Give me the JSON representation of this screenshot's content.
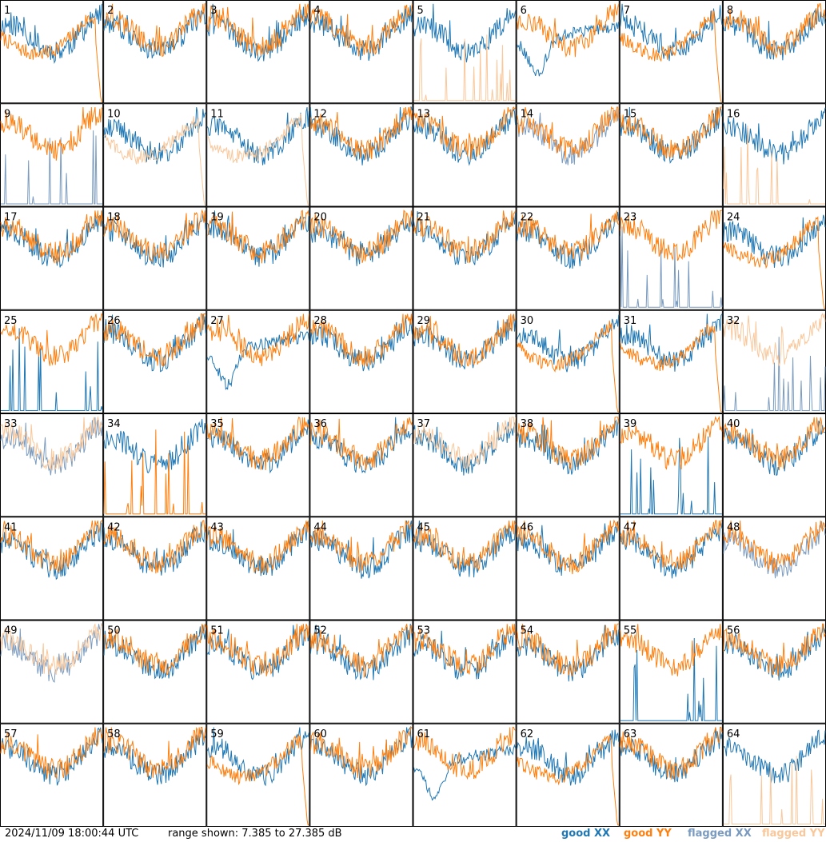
{
  "chart_data": {
    "type": "line",
    "timestamp": "2024/11/09 18:00:44 UTC",
    "range_text": "range shown: 7.385 to 27.385 dB",
    "ylim": [
      7.385,
      27.385
    ],
    "legend": [
      {
        "label": "good XX",
        "color": "#1f77b4"
      },
      {
        "label": "good YY",
        "color": "#ff7f0e"
      },
      {
        "label": "flagged XX",
        "color": "#7a9bbf"
      },
      {
        "label": "flagged YY",
        "color": "#f9c79a"
      }
    ],
    "panels": [
      {
        "label": "1",
        "xx": "good",
        "yy": "good",
        "xx_shape": "bowl",
        "yy_shape": "crash"
      },
      {
        "label": "2",
        "xx": "good",
        "yy": "good",
        "xx_shape": "bowl",
        "yy_shape": "bowl"
      },
      {
        "label": "3",
        "xx": "good",
        "yy": "good",
        "xx_shape": "bowl",
        "yy_shape": "bowl"
      },
      {
        "label": "4",
        "xx": "good",
        "yy": "good",
        "xx_shape": "bowl",
        "yy_shape": "bowl"
      },
      {
        "label": "5",
        "xx": "good",
        "yy": "flagged",
        "xx_shape": "bowl",
        "yy_shape": "spiky"
      },
      {
        "label": "6",
        "xx": "good",
        "yy": "good",
        "xx_shape": "bump",
        "yy_shape": "bowl"
      },
      {
        "label": "7",
        "xx": "good",
        "yy": "good",
        "xx_shape": "bowl",
        "yy_shape": "crash"
      },
      {
        "label": "8",
        "xx": "good",
        "yy": "good",
        "xx_shape": "bowl",
        "yy_shape": "bowl"
      },
      {
        "label": "9",
        "xx": "flagged",
        "yy": "good",
        "xx_shape": "spiky",
        "yy_shape": "bowl"
      },
      {
        "label": "10",
        "xx": "good",
        "yy": "flagged",
        "xx_shape": "bowl",
        "yy_shape": "crash"
      },
      {
        "label": "11",
        "xx": "good",
        "yy": "flagged",
        "xx_shape": "bowl",
        "yy_shape": "crash"
      },
      {
        "label": "12",
        "xx": "good",
        "yy": "good",
        "xx_shape": "bowl",
        "yy_shape": "bowl"
      },
      {
        "label": "13",
        "xx": "good",
        "yy": "good",
        "xx_shape": "bowl",
        "yy_shape": "bowl"
      },
      {
        "label": "14",
        "xx": "flagged",
        "yy": "good",
        "xx_shape": "bowl",
        "yy_shape": "bowl"
      },
      {
        "label": "15",
        "xx": "good",
        "yy": "good",
        "xx_shape": "bowl",
        "yy_shape": "bowl"
      },
      {
        "label": "16",
        "xx": "good",
        "yy": "flagged",
        "xx_shape": "bowl",
        "yy_shape": "spiky"
      },
      {
        "label": "17",
        "xx": "good",
        "yy": "good",
        "xx_shape": "bowl",
        "yy_shape": "bowl"
      },
      {
        "label": "18",
        "xx": "good",
        "yy": "good",
        "xx_shape": "bowl",
        "yy_shape": "bowl"
      },
      {
        "label": "19",
        "xx": "good",
        "yy": "good",
        "xx_shape": "bowl",
        "yy_shape": "bowl"
      },
      {
        "label": "20",
        "xx": "good",
        "yy": "good",
        "xx_shape": "bowl",
        "yy_shape": "bowl"
      },
      {
        "label": "21",
        "xx": "good",
        "yy": "good",
        "xx_shape": "bowl",
        "yy_shape": "bowl"
      },
      {
        "label": "22",
        "xx": "good",
        "yy": "good",
        "xx_shape": "bowl",
        "yy_shape": "bowl"
      },
      {
        "label": "23",
        "xx": "flagged",
        "yy": "good",
        "xx_shape": "spiky",
        "yy_shape": "bowl"
      },
      {
        "label": "24",
        "xx": "good",
        "yy": "good",
        "xx_shape": "bowl",
        "yy_shape": "crash"
      },
      {
        "label": "25",
        "xx": "good",
        "yy": "good",
        "xx_shape": "spiky",
        "yy_shape": "bowl"
      },
      {
        "label": "26",
        "xx": "good",
        "yy": "good",
        "xx_shape": "bowl",
        "yy_shape": "bowl"
      },
      {
        "label": "27",
        "xx": "good",
        "yy": "good",
        "xx_shape": "bump",
        "yy_shape": "bowl"
      },
      {
        "label": "28",
        "xx": "good",
        "yy": "good",
        "xx_shape": "bowl",
        "yy_shape": "bowl"
      },
      {
        "label": "29",
        "xx": "good",
        "yy": "good",
        "xx_shape": "bowl",
        "yy_shape": "bowl"
      },
      {
        "label": "30",
        "xx": "good",
        "yy": "good",
        "xx_shape": "bowl",
        "yy_shape": "crash"
      },
      {
        "label": "31",
        "xx": "good",
        "yy": "good",
        "xx_shape": "bowl",
        "yy_shape": "crash"
      },
      {
        "label": "32",
        "xx": "flagged",
        "yy": "flagged",
        "xx_shape": "spiky",
        "yy_shape": "bowl"
      },
      {
        "label": "33",
        "xx": "flagged",
        "yy": "flagged",
        "xx_shape": "bowl",
        "yy_shape": "bowl"
      },
      {
        "label": "34",
        "xx": "good",
        "yy": "good",
        "xx_shape": "bowl",
        "yy_shape": "spiky"
      },
      {
        "label": "35",
        "xx": "good",
        "yy": "good",
        "xx_shape": "bowl",
        "yy_shape": "bowl"
      },
      {
        "label": "36",
        "xx": "good",
        "yy": "good",
        "xx_shape": "bowl",
        "yy_shape": "bowl"
      },
      {
        "label": "37",
        "xx": "good",
        "yy": "flagged",
        "xx_shape": "bowl",
        "yy_shape": "bowl"
      },
      {
        "label": "38",
        "xx": "good",
        "yy": "good",
        "xx_shape": "bowl",
        "yy_shape": "bowl"
      },
      {
        "label": "39",
        "xx": "good",
        "yy": "good",
        "xx_shape": "spiky",
        "yy_shape": "bowl"
      },
      {
        "label": "40",
        "xx": "good",
        "yy": "good",
        "xx_shape": "bowl",
        "yy_shape": "bowl"
      },
      {
        "label": "41",
        "xx": "good",
        "yy": "good",
        "xx_shape": "bowl",
        "yy_shape": "bowl"
      },
      {
        "label": "42",
        "xx": "good",
        "yy": "good",
        "xx_shape": "bowl",
        "yy_shape": "bowl"
      },
      {
        "label": "43",
        "xx": "good",
        "yy": "good",
        "xx_shape": "bowl",
        "yy_shape": "bowl"
      },
      {
        "label": "44",
        "xx": "good",
        "yy": "good",
        "xx_shape": "bowl",
        "yy_shape": "bowl"
      },
      {
        "label": "45",
        "xx": "good",
        "yy": "good",
        "xx_shape": "bowl",
        "yy_shape": "bowl"
      },
      {
        "label": "46",
        "xx": "good",
        "yy": "good",
        "xx_shape": "bowl",
        "yy_shape": "bowl"
      },
      {
        "label": "47",
        "xx": "good",
        "yy": "good",
        "xx_shape": "bowl",
        "yy_shape": "bowl"
      },
      {
        "label": "48",
        "xx": "flagged",
        "yy": "good",
        "xx_shape": "bowl",
        "yy_shape": "bowl"
      },
      {
        "label": "49",
        "xx": "flagged",
        "yy": "flagged",
        "xx_shape": "bowl",
        "yy_shape": "bowl"
      },
      {
        "label": "50",
        "xx": "good",
        "yy": "good",
        "xx_shape": "bowl",
        "yy_shape": "bowl"
      },
      {
        "label": "51",
        "xx": "good",
        "yy": "good",
        "xx_shape": "bowl",
        "yy_shape": "bowl"
      },
      {
        "label": "52",
        "xx": "good",
        "yy": "good",
        "xx_shape": "bowl",
        "yy_shape": "bowl"
      },
      {
        "label": "53",
        "xx": "good",
        "yy": "good",
        "xx_shape": "bowl",
        "yy_shape": "bowl"
      },
      {
        "label": "54",
        "xx": "good",
        "yy": "good",
        "xx_shape": "bowl",
        "yy_shape": "bowl"
      },
      {
        "label": "55",
        "xx": "good",
        "yy": "good",
        "xx_shape": "spiky",
        "yy_shape": "bowl"
      },
      {
        "label": "56",
        "xx": "good",
        "yy": "good",
        "xx_shape": "bowl",
        "yy_shape": "bowl"
      },
      {
        "label": "57",
        "xx": "good",
        "yy": "good",
        "xx_shape": "bowl",
        "yy_shape": "bowl"
      },
      {
        "label": "58",
        "xx": "good",
        "yy": "good",
        "xx_shape": "bowl",
        "yy_shape": "bowl"
      },
      {
        "label": "59",
        "xx": "good",
        "yy": "good",
        "xx_shape": "bowl",
        "yy_shape": "crash"
      },
      {
        "label": "60",
        "xx": "good",
        "yy": "good",
        "xx_shape": "bowl",
        "yy_shape": "bowl"
      },
      {
        "label": "61",
        "xx": "good",
        "yy": "good",
        "xx_shape": "bump",
        "yy_shape": "bowl"
      },
      {
        "label": "62",
        "xx": "good",
        "yy": "good",
        "xx_shape": "bowl",
        "yy_shape": "crash"
      },
      {
        "label": "63",
        "xx": "good",
        "yy": "good",
        "xx_shape": "bowl",
        "yy_shape": "bowl"
      },
      {
        "label": "64",
        "xx": "good",
        "yy": "flagged",
        "xx_shape": "bowl",
        "yy_shape": "spiky"
      }
    ]
  }
}
